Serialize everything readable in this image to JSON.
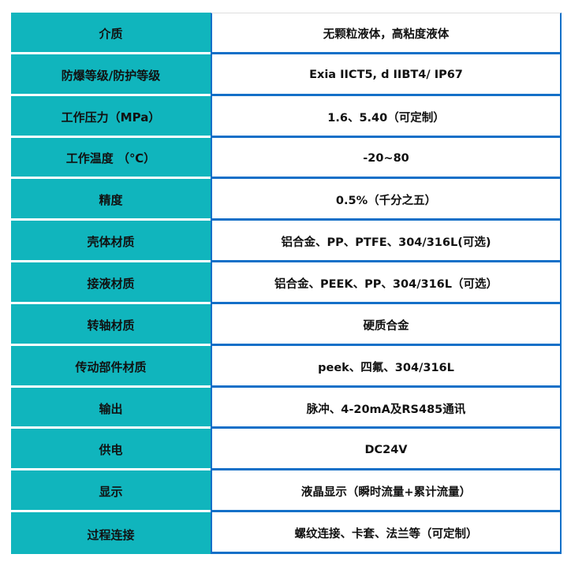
{
  "colors": {
    "header_cell": "#10b5bd",
    "border": "#1470c8"
  },
  "rows": [
    {
      "label": "介质",
      "value": "无颗粒液体，高粘度液体"
    },
    {
      "label": "防爆等级/防护等级",
      "value": "Exia IICT5, d IIBT4/ IP67"
    },
    {
      "label": "工作压力（MPa）",
      "value": "1.6、5.40（可定制）"
    },
    {
      "label": "工作温度 （℃）",
      "value": "-20~80"
    },
    {
      "label": "精度",
      "value": "0.5%（千分之五）"
    },
    {
      "label": "壳体材质",
      "value": "铝合金、PP、PTFE、304/316L(可选)"
    },
    {
      "label": "接液材质",
      "value": "铝合金、PEEK、PP、304/316L（可选）"
    },
    {
      "label": "转轴材质",
      "value": "硬质合金"
    },
    {
      "label": "传动部件材质",
      "value": "peek、四氟、304/316L"
    },
    {
      "label": "输出",
      "value": "脉冲、4-20mA及RS485通讯"
    },
    {
      "label": "供电",
      "value": "DC24V"
    },
    {
      "label": "显示",
      "value": "液晶显示（瞬时流量+累计流量）"
    },
    {
      "label": "过程连接",
      "value": "螺纹连接、卡套、法兰等（可定制）"
    }
  ]
}
